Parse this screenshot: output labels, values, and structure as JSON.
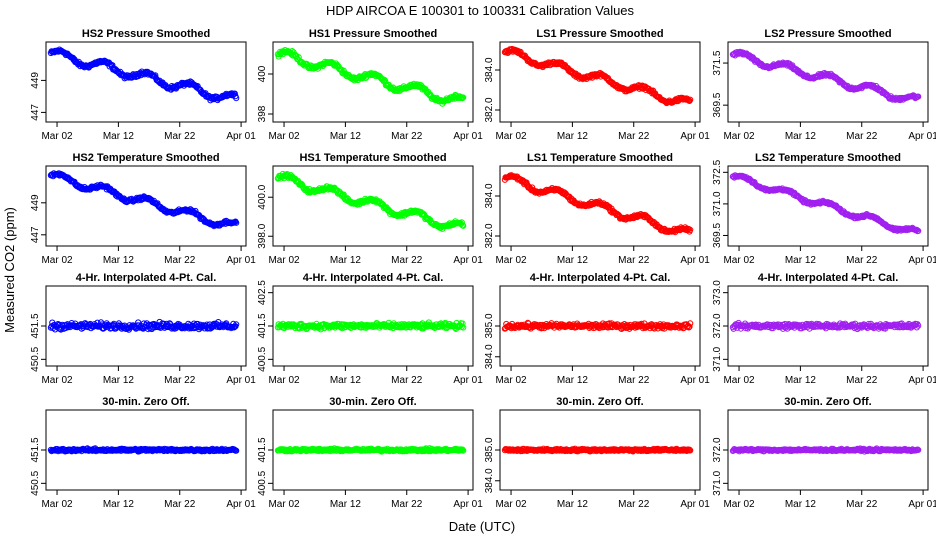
{
  "page_title": "HDP   AIRCOA E   100301 to 100331   Calibration Values",
  "chart_data": {
    "type": "scatter",
    "title": "HDP   AIRCOA E   100301 to 100331   Calibration Values",
    "xlabel": "Date (UTC)",
    "ylabel": "Measured CO2 (ppm)",
    "x_ticks": [
      {
        "label": "Mar 02",
        "day": 1
      },
      {
        "label": "Mar 12",
        "day": 11
      },
      {
        "label": "Mar 22",
        "day": 21
      },
      {
        "label": "Apr 01",
        "day": 31
      }
    ],
    "xlim": [
      -0.8,
      31.8
    ],
    "colors": {
      "HS2": "#0000ff",
      "HS1": "#00ff00",
      "LS1": "#ff0000",
      "LS2": "#a020f0"
    },
    "panels": [
      {
        "title": "HS2 Pressure Smoothed",
        "series": "HS2",
        "ylim": [
          446.4,
          451.4
        ],
        "yticks": [
          "447",
          "449"
        ],
        "ytick_values": [
          447,
          449
        ],
        "pattern": "drift",
        "start": 450.7,
        "end": 447.8,
        "noise": 0.35
      },
      {
        "title": "HS1 Pressure Smoothed",
        "series": "HS1",
        "ylim": [
          397.6,
          401.6
        ],
        "yticks": [
          "398",
          "400"
        ],
        "ytick_values": [
          398,
          400
        ],
        "pattern": "drift",
        "start": 401.0,
        "end": 398.6,
        "noise": 0.3
      },
      {
        "title": "LS1 Pressure Smoothed",
        "series": "LS1",
        "ylim": [
          381.4,
          385.4
        ],
        "yticks": [
          "382.0",
          "384.0"
        ],
        "ytick_values": [
          382.0,
          384.0
        ],
        "pattern": "drift",
        "start": 384.9,
        "end": 382.3,
        "noise": 0.25
      },
      {
        "title": "LS2 Pressure Smoothed",
        "series": "LS2",
        "ylim": [
          368.7,
          372.5
        ],
        "yticks": [
          "369.5",
          "371.5"
        ],
        "ytick_values": [
          369.5,
          371.5
        ],
        "pattern": "drift",
        "start": 371.9,
        "end": 369.7,
        "noise": 0.22
      },
      {
        "title": "HS2 Temperature Smoothed",
        "series": "HS2",
        "ylim": [
          446.3,
          451.3
        ],
        "yticks": [
          "447",
          "449"
        ],
        "ytick_values": [
          447,
          449
        ],
        "pattern": "drift",
        "start": 450.7,
        "end": 447.5,
        "noise": 0.3
      },
      {
        "title": "HS1 Temperature Smoothed",
        "series": "HS1",
        "ylim": [
          397.5,
          401.6
        ],
        "yticks": [
          "398.0",
          "400.0"
        ],
        "ytick_values": [
          398.0,
          400.0
        ],
        "pattern": "drift",
        "start": 401.0,
        "end": 398.4,
        "noise": 0.28
      },
      {
        "title": "LS1 Temperature Smoothed",
        "series": "LS1",
        "ylim": [
          381.5,
          385.5
        ],
        "yticks": [
          "382.0",
          "384.0"
        ],
        "ytick_values": [
          382.0,
          384.0
        ],
        "pattern": "drift",
        "start": 384.9,
        "end": 382.1,
        "noise": 0.25
      },
      {
        "title": "LS2 Temperature Smoothed",
        "series": "LS2",
        "ylim": [
          369.0,
          372.8
        ],
        "yticks": [
          "369.5",
          "371.0",
          "372.5"
        ],
        "ytick_values": [
          369.5,
          371.0,
          372.5
        ],
        "pattern": "drift",
        "start": 372.3,
        "end": 369.6,
        "noise": 0.18
      },
      {
        "title": "4-Hr. Interpolated 4-Pt. Cal.",
        "series": "HS2",
        "ylim": [
          450.3,
          452.7
        ],
        "yticks": [
          "450.5",
          "451.5"
        ],
        "ytick_values": [
          450.5,
          451.5
        ],
        "pattern": "flat",
        "start": 451.5,
        "end": 451.5,
        "noise": 0.14
      },
      {
        "title": "4-Hr. Interpolated 4-Pt. Cal.",
        "series": "HS1",
        "ylim": [
          400.3,
          402.7
        ],
        "yticks": [
          "400.5",
          "401.5",
          "402.5"
        ],
        "ytick_values": [
          400.5,
          401.5,
          402.5
        ],
        "pattern": "flat",
        "start": 401.5,
        "end": 401.5,
        "noise": 0.12
      },
      {
        "title": "4-Hr. Interpolated 4-Pt. Cal.",
        "series": "LS1",
        "ylim": [
          383.7,
          386.3
        ],
        "yticks": [
          "384.0",
          "385.0"
        ],
        "ytick_values": [
          384.0,
          385.0
        ],
        "pattern": "flat",
        "start": 385.0,
        "end": 385.0,
        "noise": 0.12
      },
      {
        "title": "4-Hr. Interpolated 4-Pt. Cal.",
        "series": "LS2",
        "ylim": [
          370.8,
          373.2
        ],
        "yticks": [
          "371.0",
          "372.0",
          "373.0"
        ],
        "ytick_values": [
          371.0,
          372.0,
          373.0
        ],
        "pattern": "flat",
        "start": 372.0,
        "end": 372.0,
        "noise": 0.11
      },
      {
        "title": "30-min. Zero Off.",
        "series": "HS2",
        "ylim": [
          450.3,
          452.7
        ],
        "yticks": [
          "450.5",
          "451.5"
        ],
        "ytick_values": [
          450.5,
          451.5
        ],
        "pattern": "flat",
        "start": 451.5,
        "end": 451.5,
        "noise": 0.06
      },
      {
        "title": "30-min. Zero Off.",
        "series": "HS1",
        "ylim": [
          400.3,
          402.7
        ],
        "yticks": [
          "400.5",
          "401.5"
        ],
        "ytick_values": [
          400.5,
          401.5
        ],
        "pattern": "flat",
        "start": 401.5,
        "end": 401.5,
        "noise": 0.06
      },
      {
        "title": "30-min. Zero Off.",
        "series": "LS1",
        "ylim": [
          383.7,
          386.3
        ],
        "yticks": [
          "384.0",
          "385.0"
        ],
        "ytick_values": [
          384.0,
          385.0
        ],
        "pattern": "flat",
        "start": 385.0,
        "end": 385.0,
        "noise": 0.06
      },
      {
        "title": "30-min. Zero Off.",
        "series": "LS2",
        "ylim": [
          370.8,
          373.2
        ],
        "yticks": [
          "371.0",
          "372.0"
        ],
        "ytick_values": [
          371.0,
          372.0
        ],
        "pattern": "flat",
        "start": 372.0,
        "end": 372.0,
        "noise": 0.05
      }
    ]
  }
}
